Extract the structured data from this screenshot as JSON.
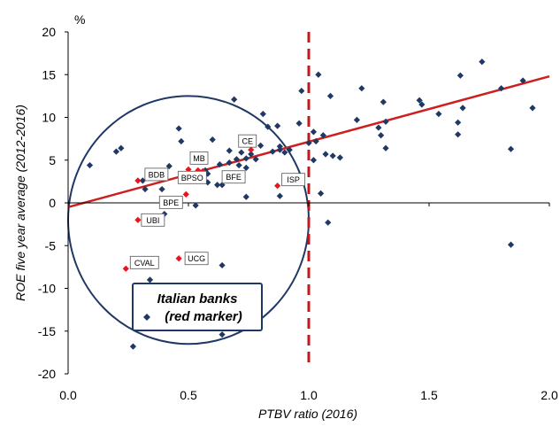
{
  "chart_data": {
    "type": "scatter",
    "xlabel": "PTBV ratio (2016)",
    "ylabel": "ROE five year average (2012-2016)",
    "yunit": "%",
    "xlim": [
      0.0,
      2.0
    ],
    "ylim": [
      -20,
      20
    ],
    "xticks": [
      "0.0",
      "0.5",
      "1.0",
      "1.5",
      "2.0"
    ],
    "yticks": [
      "20",
      "15",
      "10",
      "5",
      "0",
      "-5",
      "-10",
      "-15",
      "-20"
    ],
    "grid": false,
    "colors": {
      "other_banks": "#1f3864",
      "italian_banks": "#e8151b",
      "trend": "#cc1f1f",
      "reference": "#c0181c",
      "ellipse": "#1f3864"
    },
    "reference_line_x": 1.0,
    "trend_line": {
      "x": [
        0.0,
        2.0
      ],
      "y": [
        -0.5,
        14.8
      ]
    },
    "legend_box": {
      "lines": [
        "Italian banks",
        "(red marker)"
      ]
    },
    "ellipse": {
      "center": [
        0.5,
        -2
      ],
      "radius_x": 0.5,
      "radius_y": 14.5
    },
    "series": [
      {
        "marker": "diamond",
        "color": "#1f3864",
        "points": [
          [
            0.09,
            4.4
          ],
          [
            0.2,
            6.0
          ],
          [
            0.22,
            6.4
          ],
          [
            0.31,
            2.6
          ],
          [
            0.32,
            1.6
          ],
          [
            0.39,
            1.6
          ],
          [
            0.42,
            4.3
          ],
          [
            0.46,
            8.7
          ],
          [
            0.47,
            7.2
          ],
          [
            0.53,
            -0.3
          ],
          [
            0.57,
            3.8
          ],
          [
            0.58,
            3.4
          ],
          [
            0.58,
            2.4
          ],
          [
            0.6,
            7.4
          ],
          [
            0.62,
            2.1
          ],
          [
            0.63,
            4.5
          ],
          [
            0.64,
            2.1
          ],
          [
            0.67,
            4.7
          ],
          [
            0.67,
            6.1
          ],
          [
            0.69,
            12.1
          ],
          [
            0.7,
            5.1
          ],
          [
            0.71,
            4.4
          ],
          [
            0.72,
            5.9
          ],
          [
            0.74,
            5.2
          ],
          [
            0.74,
            4.1
          ],
          [
            0.74,
            0.7
          ],
          [
            0.76,
            5.7
          ],
          [
            0.78,
            5.1
          ],
          [
            0.8,
            6.7
          ],
          [
            0.81,
            10.4
          ],
          [
            0.83,
            8.9
          ],
          [
            0.85,
            6.0
          ],
          [
            0.87,
            9.0
          ],
          [
            0.88,
            6.6
          ],
          [
            0.88,
            6.2
          ],
          [
            0.88,
            0.8
          ],
          [
            0.9,
            5.9
          ],
          [
            0.92,
            6.2
          ],
          [
            0.94,
            3.0
          ],
          [
            0.96,
            9.3
          ],
          [
            0.97,
            13.1
          ],
          [
            1.0,
            7.0
          ],
          [
            1.02,
            5.0
          ],
          [
            1.02,
            8.3
          ],
          [
            1.03,
            7.2
          ],
          [
            1.04,
            15.0
          ],
          [
            1.05,
            1.1
          ],
          [
            1.06,
            7.9
          ],
          [
            1.07,
            5.7
          ],
          [
            1.08,
            -2.3
          ],
          [
            1.09,
            12.5
          ],
          [
            1.1,
            5.5
          ],
          [
            1.13,
            5.3
          ],
          [
            1.2,
            9.7
          ],
          [
            1.22,
            13.4
          ],
          [
            1.29,
            8.8
          ],
          [
            1.3,
            7.9
          ],
          [
            1.31,
            11.8
          ],
          [
            1.32,
            6.4
          ],
          [
            1.32,
            9.5
          ],
          [
            1.46,
            12.0
          ],
          [
            1.47,
            11.5
          ],
          [
            1.54,
            10.4
          ],
          [
            1.62,
            9.4
          ],
          [
            1.62,
            8.0
          ],
          [
            1.63,
            14.9
          ],
          [
            1.64,
            11.1
          ],
          [
            1.72,
            16.5
          ],
          [
            1.8,
            13.4
          ],
          [
            1.84,
            6.3
          ],
          [
            1.84,
            -4.9
          ],
          [
            1.89,
            14.3
          ],
          [
            1.93,
            11.1
          ],
          [
            0.4,
            -1.3
          ],
          [
            0.34,
            -9.0
          ],
          [
            0.27,
            -16.8
          ],
          [
            0.64,
            -7.3
          ],
          [
            0.64,
            -15.4
          ]
        ]
      },
      {
        "marker": "diamond",
        "color": "#e8151b",
        "points": [
          [
            0.29,
            2.6
          ],
          [
            0.5,
            3.9
          ],
          [
            0.54,
            3.8
          ],
          [
            0.56,
            3.7
          ],
          [
            0.76,
            6.2
          ],
          [
            0.29,
            -2.0
          ],
          [
            0.24,
            -7.7
          ],
          [
            0.46,
            -6.5
          ],
          [
            0.87,
            2.0
          ],
          [
            0.49,
            1.0
          ]
        ]
      }
    ],
    "point_labels": [
      {
        "text": "BDB",
        "x": 0.29,
        "y": 2.6
      },
      {
        "text": "MB",
        "x": 0.5,
        "y": 3.9
      },
      {
        "text": "BPSO",
        "x": 0.56,
        "y": 3.7
      },
      {
        "text": "BFE",
        "x": 0.64,
        "y": 2.1
      },
      {
        "text": "CE",
        "x": 0.76,
        "y": 6.2
      },
      {
        "text": "BPE",
        "x": 0.49,
        "y": 1.0
      },
      {
        "text": "ISP",
        "x": 0.87,
        "y": 2.0
      },
      {
        "text": "UBI",
        "x": 0.29,
        "y": -2.0
      },
      {
        "text": "UCG",
        "x": 0.46,
        "y": -6.5
      },
      {
        "text": "CVAL",
        "x": 0.24,
        "y": -7.7
      }
    ]
  }
}
